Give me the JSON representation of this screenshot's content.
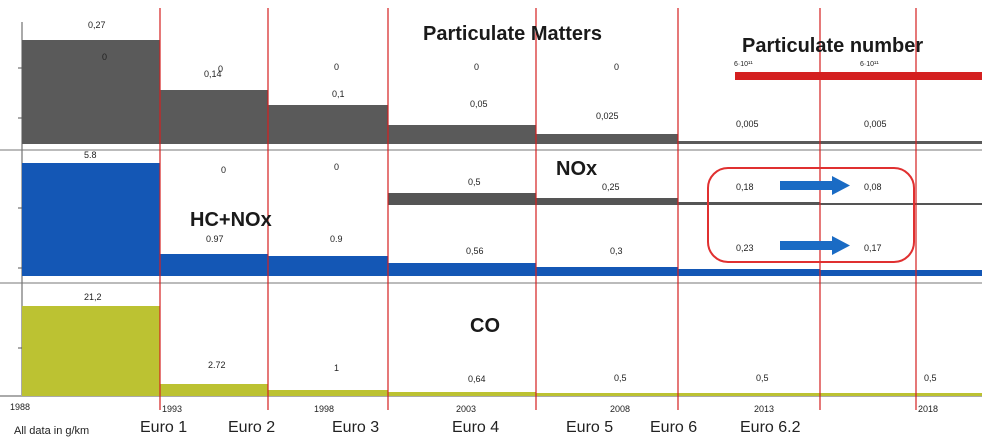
{
  "chart_data": {
    "type": "step-area",
    "footnote": "All data in g/km",
    "years": [
      "1988",
      "1993",
      "1998",
      "2003",
      "2008",
      "2013",
      "2018"
    ],
    "euro_stages": [
      "Euro 1",
      "Euro 2",
      "Euro 3",
      "Euro 4",
      "Euro 5",
      "Euro 6",
      "Euro 6.2"
    ],
    "colors": {
      "pm": "#5a5a5a",
      "nox_petrol": "#555555",
      "hcnox": "#1457b5",
      "co": "#bcc232",
      "pn": "#d42020",
      "stage_line": "#d42020",
      "highlight": "#e03030",
      "arrow": "#1a6bc4"
    },
    "panels": {
      "pm": {
        "title": "Particulate Matters",
        "pn_title": "Particulate number",
        "diesel_labels": [
          "0,27",
          "0,14",
          "0,1",
          "0,05",
          "0,025",
          "0,005",
          "0,005"
        ],
        "petrol_labels": [
          "0",
          "0",
          "0",
          "0",
          "0"
        ],
        "pn_labels": [
          "6·10¹¹",
          "6·10¹¹"
        ]
      },
      "nox": {
        "title": "NOx",
        "hcnox_title": "HC+NOx",
        "hcnox_top_labels": [
          "5.8",
          "0",
          "0"
        ],
        "nox_labels": [
          "0,5",
          "0,25",
          "0,18",
          "0,08"
        ],
        "hcnox_labels": [
          "0.97",
          "0.9",
          "0,56",
          "0,3",
          "0,23",
          "0,17"
        ]
      },
      "co": {
        "title": "CO",
        "labels": [
          "21,2",
          "2.72",
          "1",
          "0,64",
          "0,5",
          "0,5",
          "0,5"
        ]
      }
    }
  }
}
